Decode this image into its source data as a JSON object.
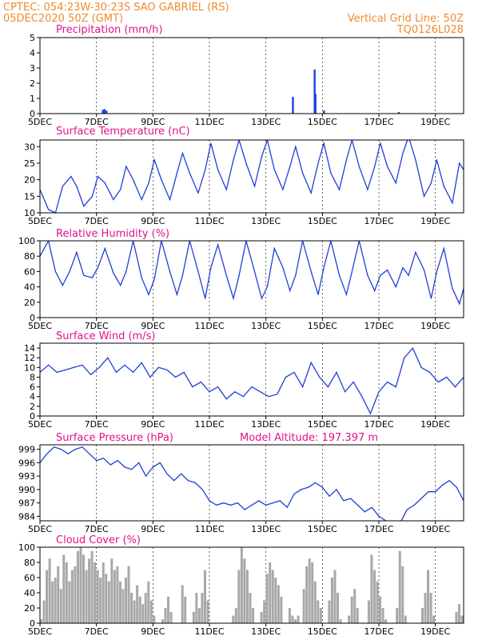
{
  "header": {
    "line1_left": "CPTEC:  054:23W-30:23S  SAO GABRIEL (RS)",
    "line2_left": "05DEC2020 50Z (GMT)",
    "line1_right": "Vertical Grid Line: 50Z",
    "line2_right": "TQ0126L028"
  },
  "x_axis": {
    "labels": [
      "5DEC",
      "7DEC",
      "9DEC",
      "11DEC",
      "13DEC",
      "15DEC",
      "17DEC",
      "19DEC"
    ],
    "days": [
      5,
      7,
      9,
      11,
      13,
      15,
      17,
      19
    ],
    "range_days": [
      5,
      20
    ]
  },
  "colors": {
    "line": "#1f3fd6",
    "bar": "#2040e0",
    "cloud": "#a8a8a8",
    "title": "#e0138c",
    "header": "#f08a2e"
  },
  "chart_data": [
    {
      "type": "bar",
      "title": "Precipitation (mm/h)",
      "ylim": [
        0,
        5
      ],
      "yticks": [
        "0",
        "1",
        "2",
        "3",
        "4",
        "5"
      ],
      "grid": true,
      "x": [
        7.22,
        7.28,
        7.35,
        13.95,
        14.72,
        14.75,
        15.05,
        17.7
      ],
      "values": [
        0.25,
        0.3,
        0.2,
        1.1,
        2.9,
        1.3,
        0.2,
        0.1
      ]
    },
    {
      "type": "line",
      "title": "Surface Temperature (nC)",
      "ylim": [
        10,
        32
      ],
      "yticks": [
        "10",
        "15",
        "20",
        "25",
        "30"
      ],
      "grid": true,
      "x": [
        5.0,
        5.3,
        5.55,
        5.8,
        6.1,
        6.3,
        6.55,
        6.85,
        7.05,
        7.3,
        7.6,
        7.85,
        8.05,
        8.3,
        8.6,
        8.85,
        9.05,
        9.3,
        9.6,
        9.85,
        10.05,
        10.3,
        10.6,
        10.85,
        11.05,
        11.3,
        11.6,
        11.85,
        12.05,
        12.3,
        12.6,
        12.85,
        13.05,
        13.3,
        13.6,
        13.85,
        14.05,
        14.3,
        14.6,
        14.85,
        15.05,
        15.3,
        15.6,
        15.85,
        16.05,
        16.3,
        16.6,
        16.85,
        17.05,
        17.3,
        17.6,
        17.85,
        18.05,
        18.3,
        18.6,
        18.85,
        19.05,
        19.3,
        19.6,
        19.85,
        20.0
      ],
      "values": [
        17,
        11,
        10,
        18,
        21,
        18,
        12,
        15,
        21,
        19,
        14,
        17,
        24,
        20,
        14,
        19,
        26,
        20,
        14,
        22,
        28,
        22,
        16,
        23,
        31,
        23,
        17,
        26,
        32,
        25,
        18,
        27,
        32,
        23,
        17,
        24,
        30,
        22,
        16,
        25,
        31,
        22,
        17,
        26,
        32,
        24,
        17,
        24,
        31,
        24,
        19,
        28,
        33,
        26,
        15,
        19,
        26,
        18,
        13,
        25,
        23
      ]
    },
    {
      "type": "line",
      "title": "Relative Humidity (%)",
      "ylim": [
        0,
        100
      ],
      "yticks": [
        "0",
        "20",
        "40",
        "60",
        "80",
        "100"
      ],
      "grid": true,
      "x": [
        5.0,
        5.3,
        5.55,
        5.8,
        6.05,
        6.3,
        6.55,
        6.85,
        7.05,
        7.3,
        7.6,
        7.85,
        8.05,
        8.3,
        8.6,
        8.85,
        9.05,
        9.3,
        9.6,
        9.85,
        10.05,
        10.3,
        10.6,
        10.85,
        11.05,
        11.3,
        11.6,
        11.85,
        12.05,
        12.3,
        12.6,
        12.85,
        13.05,
        13.3,
        13.6,
        13.85,
        14.05,
        14.3,
        14.6,
        14.85,
        15.05,
        15.3,
        15.6,
        15.85,
        16.05,
        16.3,
        16.6,
        16.85,
        17.05,
        17.3,
        17.6,
        17.85,
        18.05,
        18.3,
        18.6,
        18.85,
        19.05,
        19.3,
        19.6,
        19.85,
        20.0
      ],
      "values": [
        80,
        100,
        60,
        42,
        60,
        85,
        55,
        52,
        65,
        90,
        58,
        42,
        60,
        100,
        52,
        30,
        50,
        100,
        60,
        30,
        55,
        100,
        60,
        25,
        65,
        95,
        55,
        25,
        55,
        100,
        60,
        25,
        40,
        90,
        65,
        35,
        55,
        100,
        60,
        30,
        65,
        100,
        55,
        30,
        60,
        100,
        55,
        35,
        55,
        62,
        40,
        65,
        55,
        85,
        62,
        25,
        60,
        90,
        38,
        18,
        38
      ]
    },
    {
      "type": "line",
      "title": "Surface Wind (m/s)",
      "ylim": [
        0,
        15
      ],
      "yticks": [
        "0",
        "2",
        "4",
        "6",
        "8",
        "10",
        "12",
        "14"
      ],
      "grid": true,
      "x": [
        5.0,
        5.3,
        5.6,
        5.9,
        6.2,
        6.5,
        6.8,
        7.1,
        7.4,
        7.7,
        8.0,
        8.3,
        8.6,
        8.9,
        9.2,
        9.5,
        9.8,
        10.1,
        10.4,
        10.7,
        11.0,
        11.3,
        11.6,
        11.9,
        12.2,
        12.5,
        12.8,
        13.1,
        13.4,
        13.7,
        14.0,
        14.3,
        14.6,
        14.9,
        15.2,
        15.5,
        15.8,
        16.1,
        16.4,
        16.7,
        17.0,
        17.3,
        17.6,
        17.9,
        18.2,
        18.5,
        18.8,
        19.1,
        19.4,
        19.7,
        20.0
      ],
      "values": [
        9,
        10.5,
        9,
        9.5,
        10,
        10.5,
        8.5,
        10,
        12,
        9,
        10.5,
        9,
        11,
        8,
        10,
        9.5,
        8,
        9,
        6,
        7,
        5,
        6,
        3.5,
        5,
        4,
        6,
        5,
        4,
        4.5,
        8,
        9,
        6,
        11,
        8,
        6,
        9,
        5,
        7,
        4,
        0.5,
        5,
        7,
        6,
        12,
        14,
        10,
        9,
        7,
        8,
        6,
        8
      ]
    },
    {
      "type": "line",
      "title": "Surface Pressure (hPa)",
      "subtitle": "Model Altitude: 197.397 m",
      "ylim": [
        983,
        1000
      ],
      "yticks": [
        "984",
        "987",
        "990",
        "993",
        "996",
        "999"
      ],
      "grid": true,
      "x": [
        5.0,
        5.25,
        5.5,
        5.75,
        6.0,
        6.25,
        6.5,
        6.75,
        7.0,
        7.25,
        7.5,
        7.75,
        8.0,
        8.25,
        8.5,
        8.75,
        9.0,
        9.25,
        9.5,
        9.75,
        10.0,
        10.25,
        10.5,
        10.75,
        11.0,
        11.25,
        11.5,
        11.75,
        12.0,
        12.25,
        12.5,
        12.75,
        13.0,
        13.25,
        13.5,
        13.75,
        14.0,
        14.25,
        14.5,
        14.75,
        15.0,
        15.25,
        15.5,
        15.75,
        16.0,
        16.25,
        16.5,
        16.75,
        17.0,
        17.25,
        17.5,
        17.75,
        18.0,
        18.25,
        18.5,
        18.75,
        19.0,
        19.25,
        19.5,
        19.75,
        20.0
      ],
      "values": [
        996,
        998,
        999.5,
        999,
        998,
        999,
        999.5,
        998,
        996.5,
        997,
        995.5,
        996.5,
        995,
        994.5,
        996,
        993,
        995,
        996,
        993.5,
        992,
        993.5,
        992,
        991.5,
        990,
        987.5,
        986.5,
        987,
        986.5,
        987,
        985.5,
        986.5,
        987.5,
        986.5,
        987,
        987.5,
        986,
        989,
        990,
        990.5,
        991.5,
        990.5,
        988.5,
        990,
        987.5,
        988,
        986.5,
        985,
        986,
        984,
        983,
        982,
        982.5,
        985.5,
        986.5,
        988,
        989.5,
        989.5,
        991,
        992,
        990.5,
        987.5
      ]
    },
    {
      "type": "area",
      "title": "Cloud Cover (%)",
      "ylim": [
        0,
        100
      ],
      "yticks": [
        "0",
        "20",
        "40",
        "60",
        "80",
        "100"
      ],
      "grid": true,
      "x": [
        5.0,
        5.1,
        5.2,
        5.3,
        5.4,
        5.5,
        5.6,
        5.7,
        5.8,
        5.9,
        6.0,
        6.1,
        6.2,
        6.3,
        6.4,
        6.5,
        6.6,
        6.7,
        6.8,
        6.9,
        7.0,
        7.1,
        7.2,
        7.3,
        7.4,
        7.5,
        7.6,
        7.7,
        7.8,
        7.9,
        8.0,
        8.1,
        8.2,
        8.3,
        8.4,
        8.5,
        8.6,
        8.7,
        8.8,
        8.9,
        9.0,
        9.1,
        9.2,
        9.3,
        9.4,
        9.5,
        9.6,
        9.7,
        9.8,
        9.9,
        10.0,
        10.1,
        10.2,
        10.3,
        10.4,
        10.5,
        10.6,
        10.7,
        10.8,
        10.9,
        11.0,
        11.1,
        11.2,
        11.3,
        11.4,
        11.5,
        11.6,
        11.7,
        11.8,
        11.9,
        12.0,
        12.1,
        12.2,
        12.3,
        12.4,
        12.5,
        12.6,
        12.7,
        12.8,
        12.9,
        13.0,
        13.1,
        13.2,
        13.3,
        13.4,
        13.5,
        13.6,
        13.7,
        13.8,
        13.9,
        14.0,
        14.1,
        14.2,
        14.3,
        14.4,
        14.5,
        14.6,
        14.7,
        14.8,
        14.9,
        15.0,
        15.1,
        15.2,
        15.3,
        15.4,
        15.5,
        15.6,
        15.7,
        15.8,
        15.9,
        16.0,
        16.1,
        16.2,
        16.3,
        16.4,
        16.5,
        16.6,
        16.7,
        16.8,
        16.9,
        17.0,
        17.1,
        17.2,
        17.3,
        17.4,
        17.5,
        17.6,
        17.7,
        17.8,
        17.9,
        18.0,
        18.1,
        18.2,
        18.3,
        18.4,
        18.5,
        18.6,
        18.7,
        18.8,
        18.9,
        19.0,
        19.1,
        19.2,
        19.3,
        19.4,
        19.5,
        19.6,
        19.7,
        19.8,
        19.9
      ],
      "values": [
        5,
        30,
        70,
        85,
        55,
        60,
        75,
        45,
        90,
        80,
        55,
        70,
        75,
        95,
        100,
        90,
        70,
        85,
        95,
        80,
        70,
        60,
        80,
        65,
        55,
        85,
        70,
        75,
        55,
        45,
        60,
        75,
        40,
        30,
        50,
        35,
        25,
        40,
        55,
        30,
        10,
        0,
        0,
        5,
        20,
        35,
        15,
        0,
        0,
        0,
        50,
        35,
        0,
        0,
        15,
        40,
        20,
        40,
        70,
        30,
        0,
        0,
        0,
        0,
        0,
        0,
        0,
        0,
        10,
        20,
        70,
        100,
        85,
        70,
        40,
        20,
        0,
        0,
        15,
        30,
        65,
        80,
        70,
        60,
        50,
        35,
        0,
        0,
        20,
        10,
        5,
        10,
        0,
        45,
        75,
        85,
        80,
        55,
        30,
        20,
        0,
        0,
        30,
        60,
        70,
        40,
        5,
        0,
        0,
        10,
        35,
        45,
        20,
        0,
        0,
        0,
        30,
        90,
        70,
        55,
        35,
        20,
        5,
        0,
        0,
        0,
        20,
        95,
        75,
        10,
        0,
        0,
        0,
        0,
        0,
        20,
        40,
        70,
        40,
        10,
        0,
        0,
        0,
        0,
        0,
        0,
        0,
        15,
        25,
        10
      ]
    }
  ]
}
